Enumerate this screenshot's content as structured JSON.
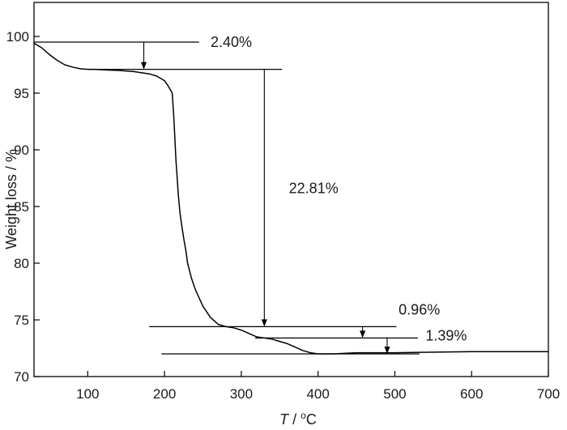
{
  "chart_data": {
    "type": "line",
    "xlabel_italic": "T",
    "xlabel_rest": " / ",
    "xlabel_degree": "o",
    "xlabel_unit": "C",
    "ylabel": "Weight loss / %",
    "xlim": [
      30,
      700
    ],
    "ylim": [
      70,
      103
    ],
    "x_ticks": [
      100,
      200,
      300,
      400,
      500,
      600,
      700
    ],
    "y_ticks": [
      70,
      75,
      80,
      85,
      90,
      95,
      100
    ],
    "grid": false,
    "legend": "none",
    "line_color": "#000000",
    "series": [
      {
        "x": [
          30,
          40,
          50,
          60,
          70,
          80,
          90,
          100,
          110,
          120,
          140,
          160,
          180,
          190,
          200,
          205,
          210,
          212,
          215,
          218,
          220,
          222,
          225,
          228,
          230,
          235,
          240,
          250,
          260,
          270,
          280,
          290,
          300,
          310,
          320,
          330,
          340,
          350,
          360,
          370,
          380,
          390,
          400,
          420,
          450,
          500,
          550,
          600,
          650,
          700
        ],
        "y": [
          99.4,
          99.0,
          98.4,
          97.9,
          97.5,
          97.3,
          97.15,
          97.1,
          97.1,
          97.05,
          97.0,
          96.9,
          96.7,
          96.5,
          96.1,
          95.6,
          95.0,
          93.0,
          89.0,
          86.0,
          84.5,
          83.5,
          82.2,
          81.0,
          80.0,
          78.7,
          77.7,
          76.2,
          75.2,
          74.6,
          74.4,
          74.3,
          74.1,
          73.8,
          73.5,
          73.4,
          73.3,
          73.1,
          72.9,
          72.6,
          72.3,
          72.1,
          72.0,
          72.0,
          72.1,
          72.1,
          72.15,
          72.2,
          72.2,
          72.2
        ]
      }
    ],
    "annotations": [
      {
        "label": "2.40%",
        "y_from": 99.5,
        "y_to": 97.1,
        "arrow_x": 173,
        "line_x_start": 30,
        "line_x_end": 245,
        "line2_x_start": 100,
        "line2_x_end": 353,
        "label_x": 260,
        "label_y": 99.5
      },
      {
        "label": "22.81%",
        "y_from": 97.1,
        "y_to": 74.4,
        "arrow_x": 330,
        "label_x": 362,
        "label_y": 86.6
      },
      {
        "label": "0.96%",
        "y_from": 74.4,
        "y_to": 73.4,
        "arrow_x": 458,
        "line_x_start": 180,
        "line_x_end": 502,
        "line2_x_start": 318,
        "line2_x_end": 530,
        "label_x": 505,
        "label_y": 75.9
      },
      {
        "label": "1.39%",
        "y_from": 73.4,
        "y_to": 72.0,
        "arrow_x": 490,
        "line2_x_start": 196,
        "line2_x_end": 532,
        "label_x": 540,
        "label_y": 73.6
      }
    ]
  }
}
